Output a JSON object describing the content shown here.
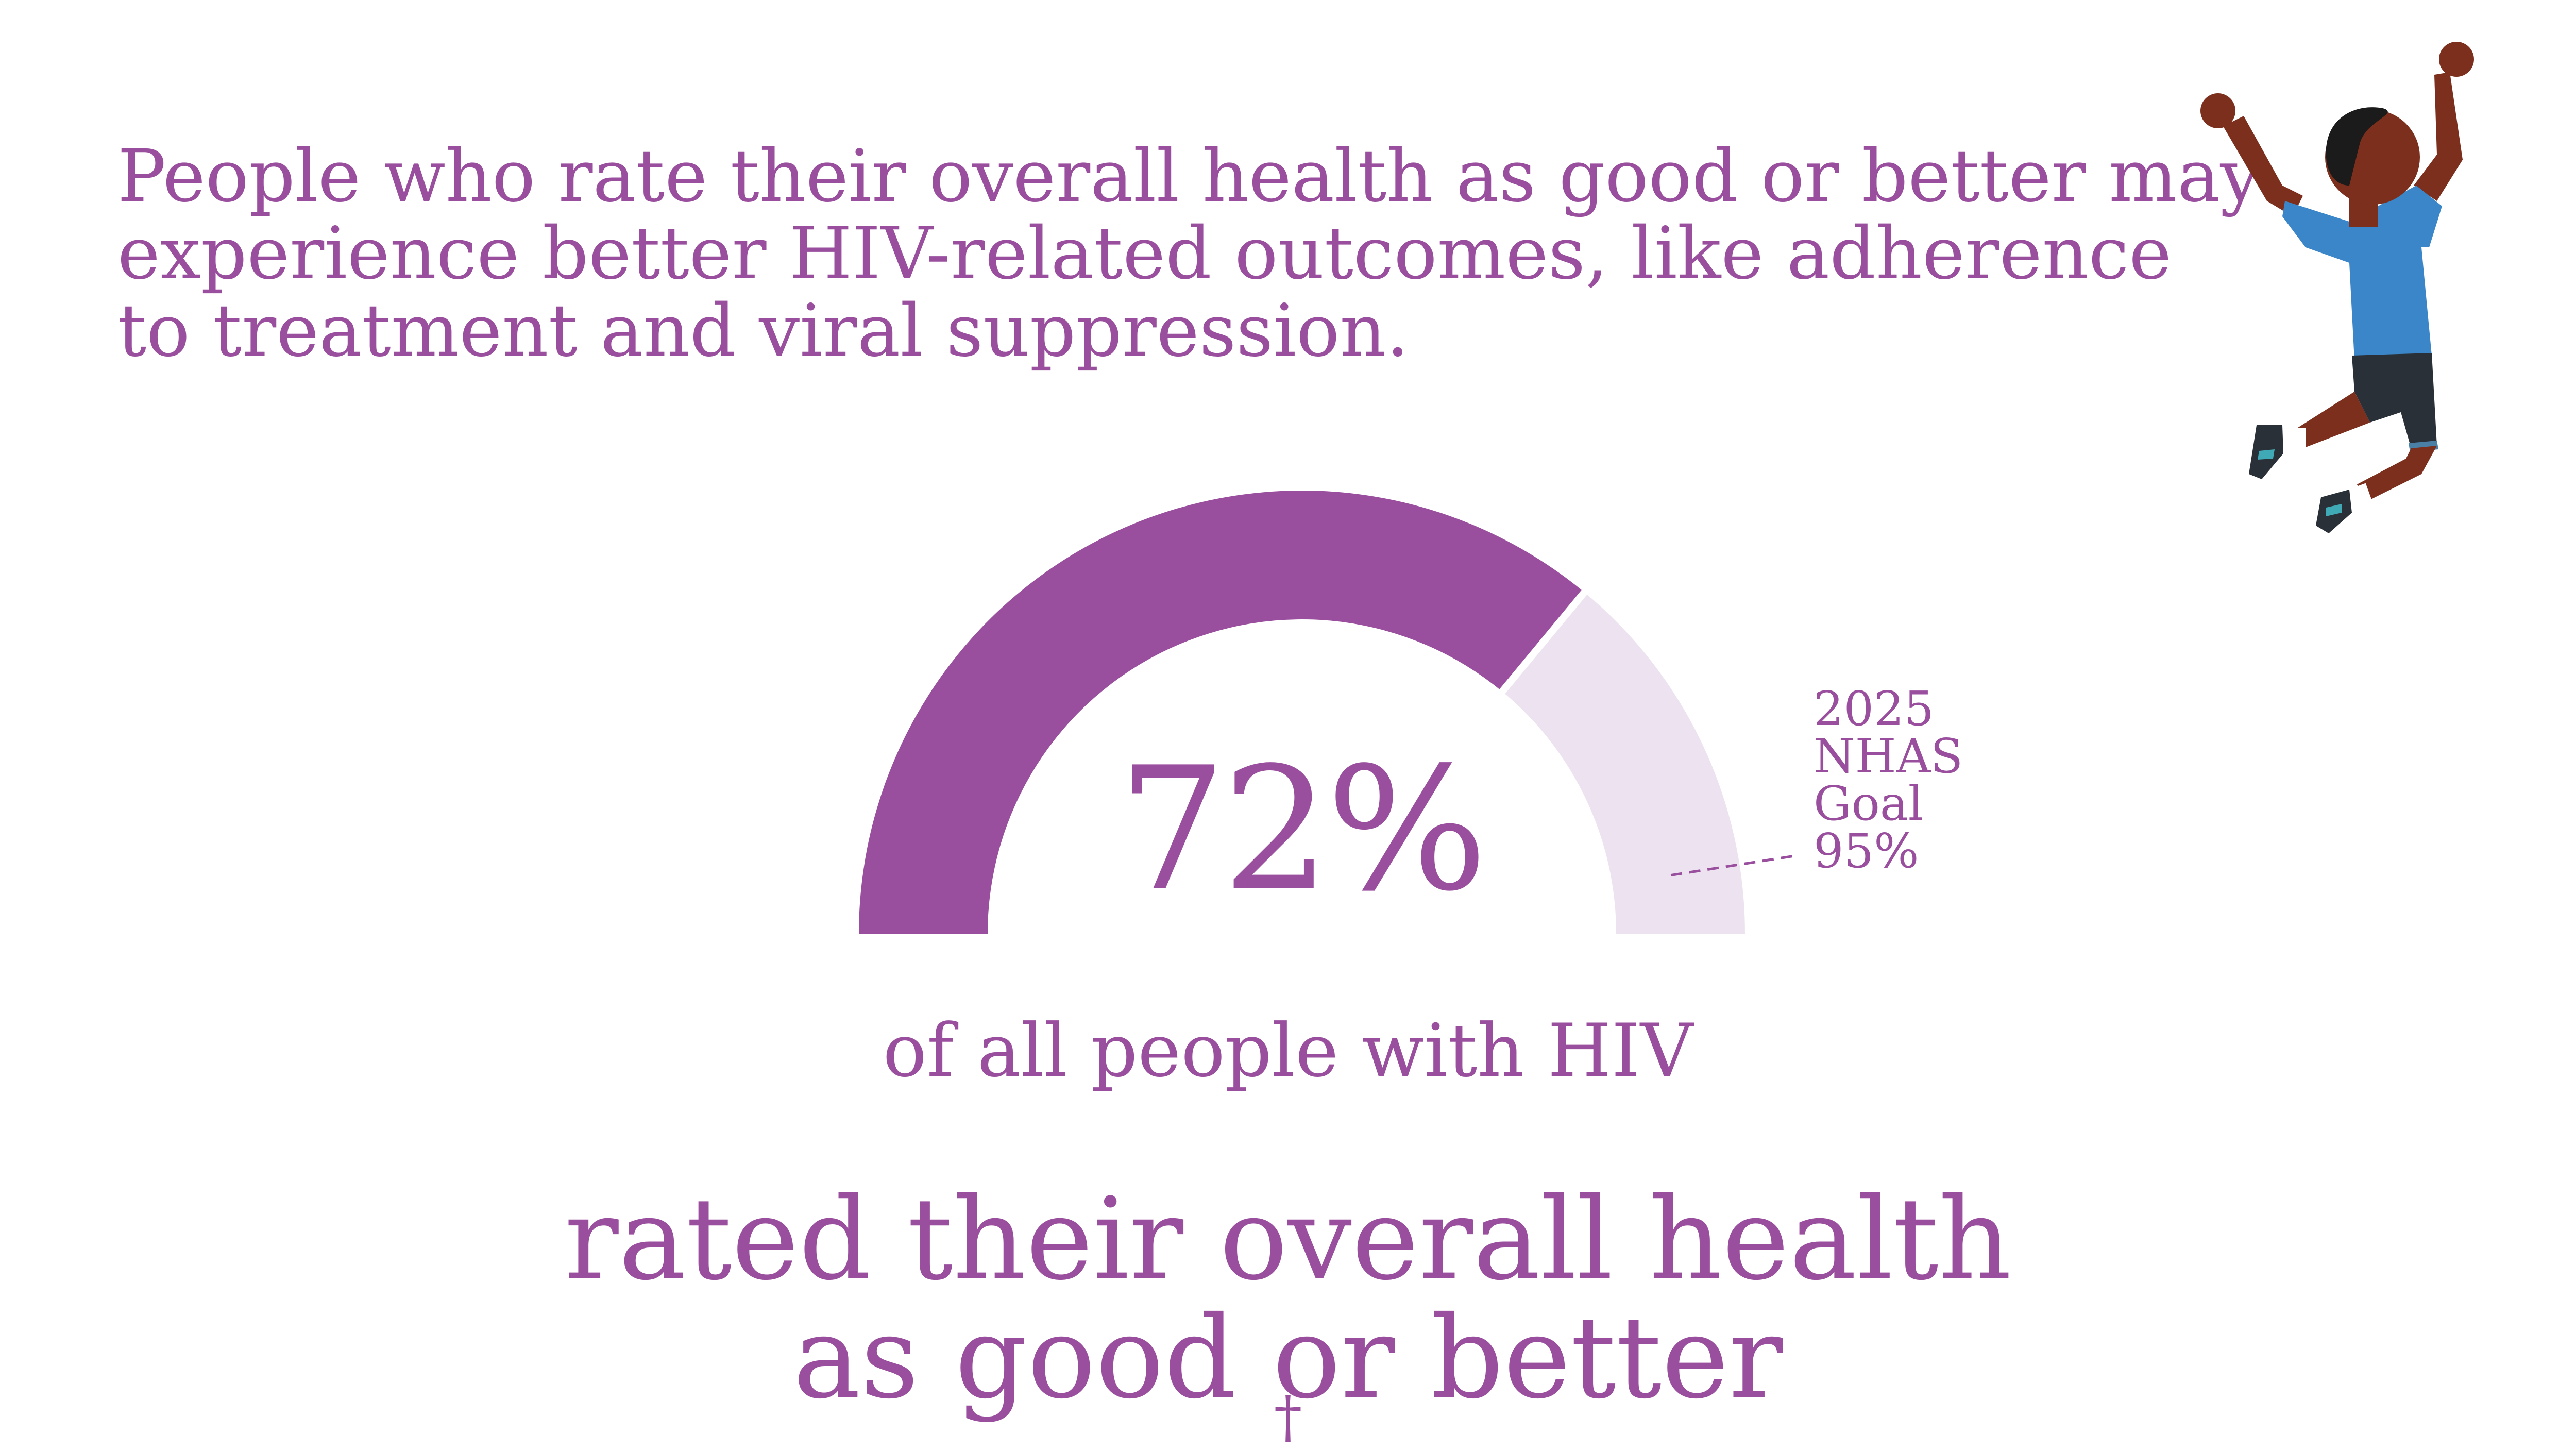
{
  "intro": {
    "lines": [
      "People who rate their overall health as good or better may",
      "experience better HIV-related outcomes, like adherence",
      "to treatment and viral suppression."
    ]
  },
  "gauge": {
    "value_label": "72%",
    "goal_lines": [
      "2025",
      "NHAS",
      "Goal",
      "95%"
    ]
  },
  "subline": "of all people with HIV",
  "headline": {
    "line1": "rated their overall health",
    "line2": "as good or better",
    "mark": "†"
  },
  "icons": {
    "person": "jumping-person-illustration"
  },
  "colors": {
    "primary": "#9a4f9e",
    "remainder": "#ede3f0",
    "skin": "#7b2f1c",
    "shirt": "#3a86c8",
    "shorts": "#2a3038"
  },
  "chart_data": {
    "type": "gauge",
    "value": 72,
    "goal": 95,
    "range": [
      0,
      100
    ],
    "unit": "%",
    "value_label": "72%",
    "goal_label": "2025 NHAS Goal 95%"
  }
}
